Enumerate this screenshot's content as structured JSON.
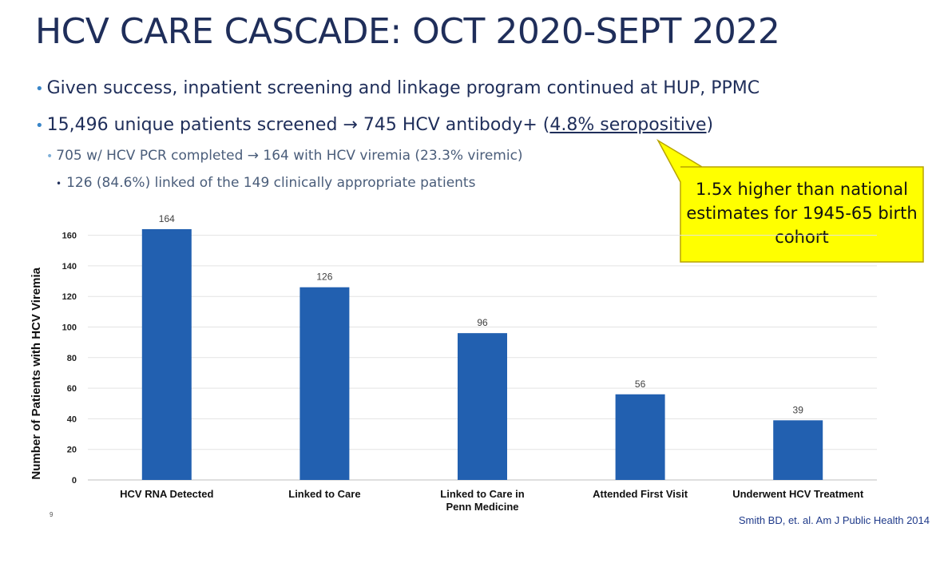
{
  "slide": {
    "title": "HCV CARE CASCADE: OCT 2020-SEPT 2022",
    "bullet1": "Given success, inpatient screening and linkage program continued at HUP, PPMC",
    "bullet2_pre": "15,496 unique patients screened → 745 HCV antibody+ (",
    "bullet2_underlined": "4.8% seropositive",
    "bullet2_post": ")",
    "bullet3": "705 w/ HCV PCR completed → 164 with HCV viremia (23.3% viremic)",
    "bullet4": "126 (84.6%) linked of the 149 clinically appropriate patients",
    "callout": "1.5x higher than national estimates for 1945-65 birth cohort",
    "footnote": "Smith BD, et. al. Am J Public Health 2014",
    "slide_number": "9",
    "bullet_glyph": "•"
  },
  "colors": {
    "title": "#1f2e5a",
    "bar": "#2260b0",
    "callout_fill": "#ffff00",
    "callout_border": "#b8a400"
  },
  "chart_data": {
    "type": "bar",
    "categories": [
      "HCV RNA Detected",
      "Linked to Care",
      "Linked to Care in Penn Medicine",
      "Attended First Visit",
      "Underwent HCV Treatment"
    ],
    "category_lines": [
      [
        "HCV RNA Detected"
      ],
      [
        "Linked to Care"
      ],
      [
        "Linked to Care in",
        "Penn Medicine"
      ],
      [
        "Attended First Visit"
      ],
      [
        "Underwent HCV Treatment"
      ]
    ],
    "values": [
      164,
      126,
      96,
      56,
      39
    ],
    "ylabel": "Number of Patients with HCV Viremia",
    "xlabel": "",
    "ylim": [
      0,
      170
    ],
    "yticks": [
      0,
      20,
      40,
      60,
      80,
      100,
      120,
      140,
      160
    ],
    "grid": true,
    "data_labels": true
  }
}
